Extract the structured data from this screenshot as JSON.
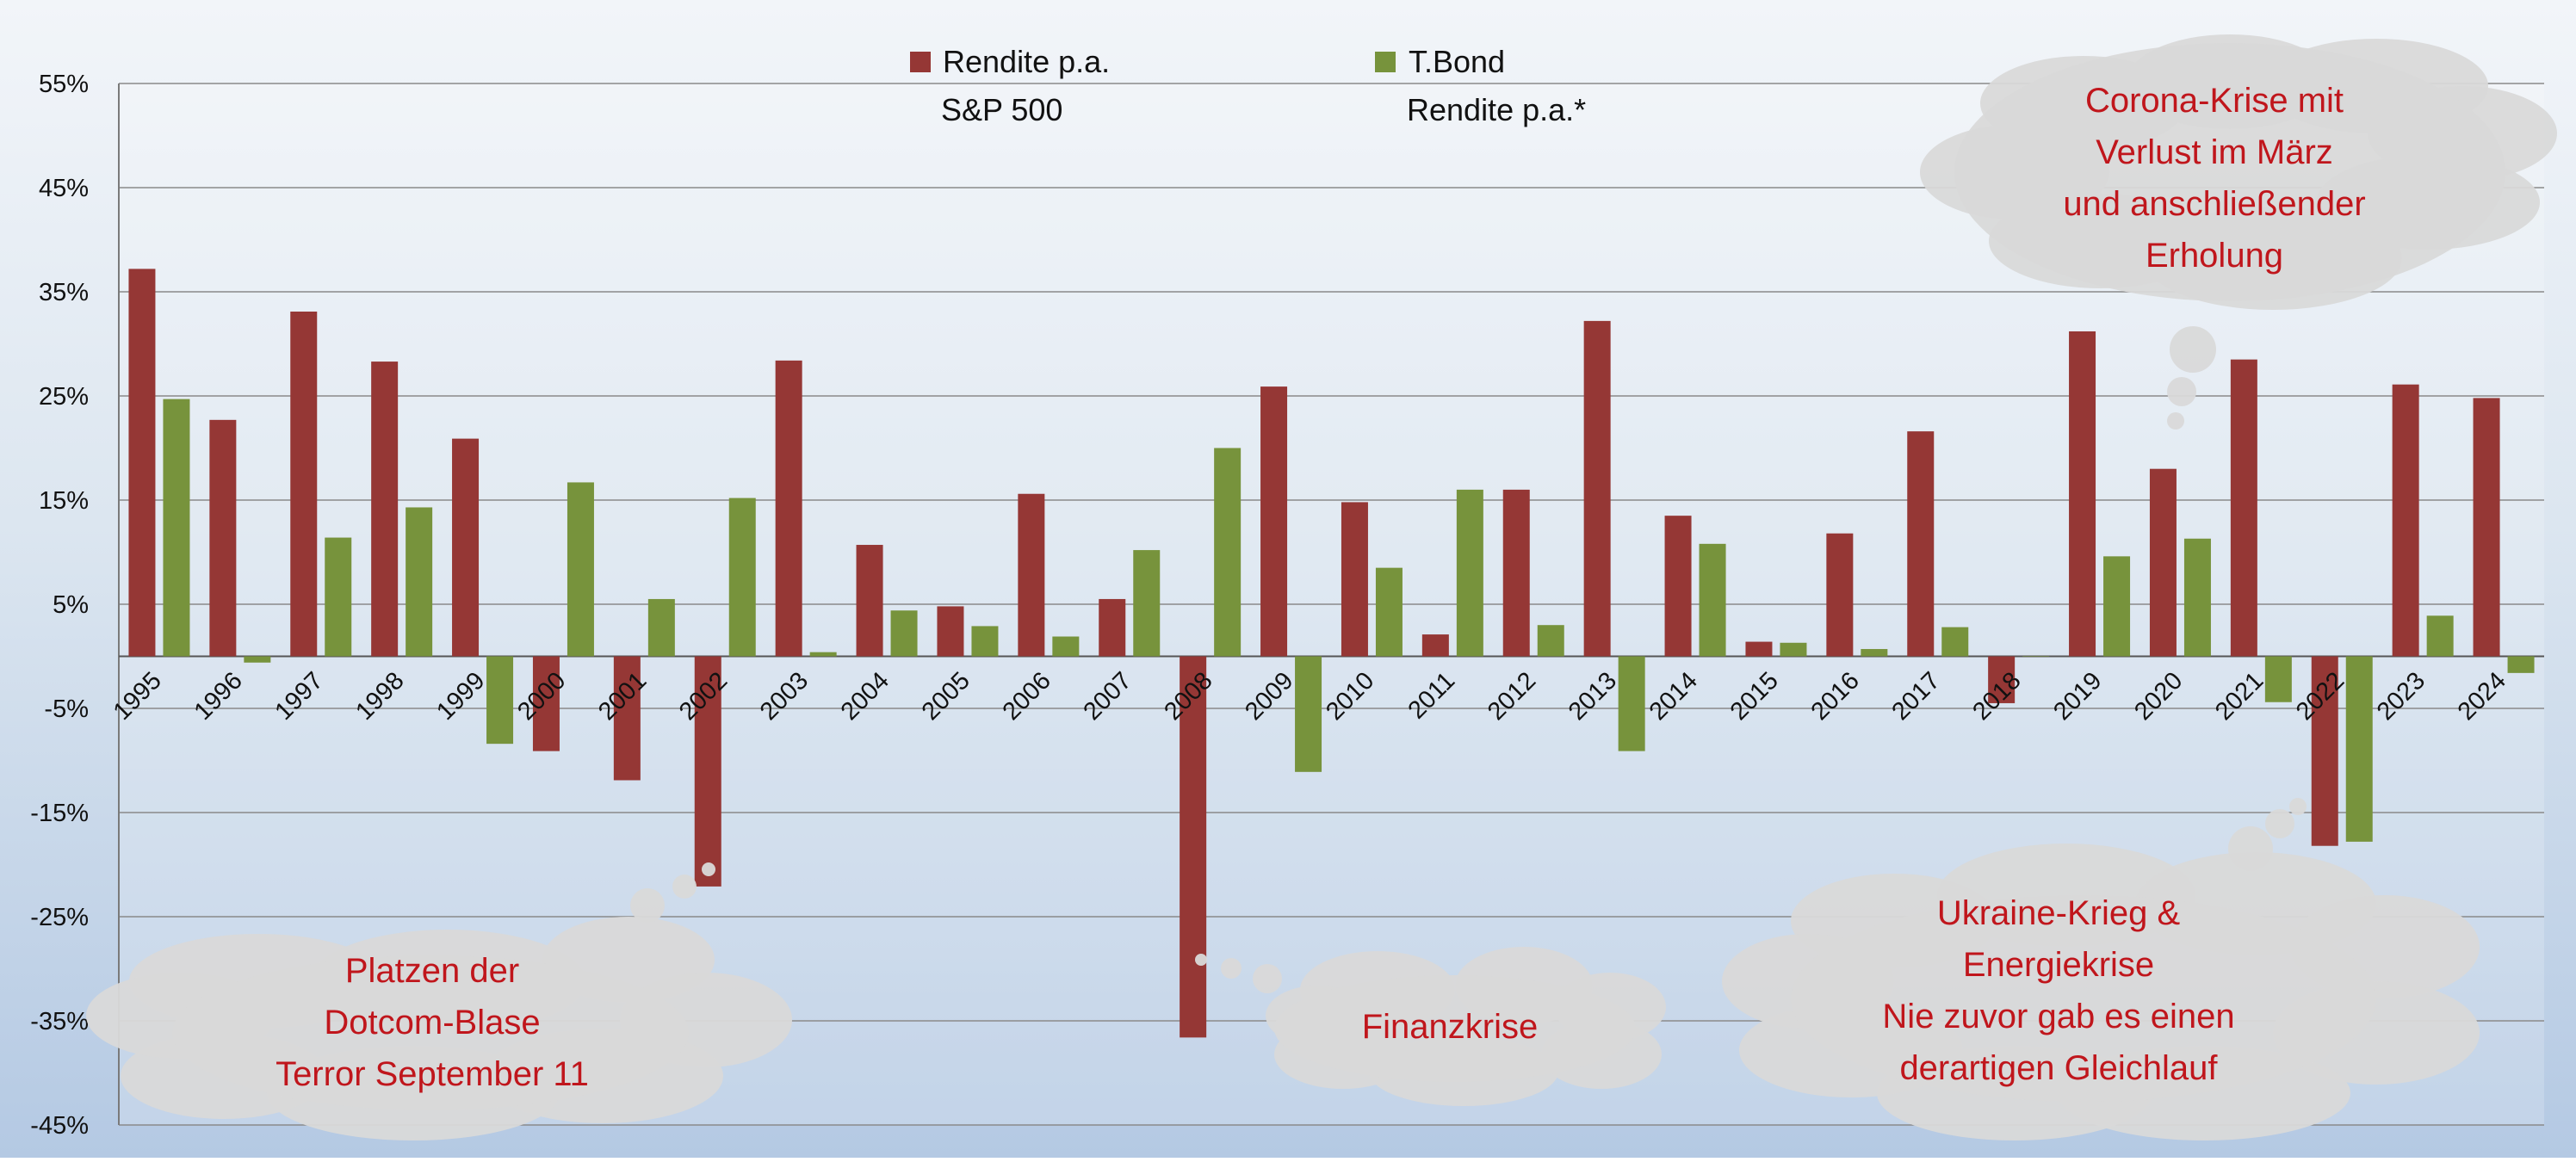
{
  "chart_data": {
    "type": "bar",
    "categories": [
      "1995",
      "1996",
      "1997",
      "1998",
      "1999",
      "2000",
      "2001",
      "2002",
      "2003",
      "2004",
      "2005",
      "2006",
      "2007",
      "2008",
      "2009",
      "2010",
      "2011",
      "2012",
      "2013",
      "2014",
      "2015",
      "2016",
      "2017",
      "2018",
      "2019",
      "2020",
      "2021",
      "2022",
      "2023",
      "2024"
    ],
    "series": [
      {
        "name": "Rendite p.a. S&P 500",
        "legend_lines": [
          "Rendite p.a.",
          "S&P 500"
        ],
        "color": "#953735",
        "values": [
          37.2,
          22.7,
          33.1,
          28.3,
          20.9,
          -9.1,
          -11.9,
          -22.1,
          28.4,
          10.7,
          4.8,
          15.6,
          5.5,
          -36.6,
          25.9,
          14.8,
          2.1,
          16.0,
          32.2,
          13.5,
          1.4,
          11.8,
          21.6,
          -4.5,
          31.2,
          18.0,
          28.5,
          -18.2,
          26.1,
          24.8
        ]
      },
      {
        "name": "T.Bond Rendite p.a.*",
        "legend_lines": [
          "T.Bond",
          "Rendite p.a.*"
        ],
        "color": "#77933c",
        "values": [
          24.7,
          -0.6,
          11.4,
          14.3,
          -8.4,
          16.7,
          5.5,
          15.2,
          0.4,
          4.4,
          2.9,
          1.9,
          10.2,
          20.0,
          -11.1,
          8.5,
          16.0,
          3.0,
          -9.1,
          10.8,
          1.3,
          0.7,
          2.8,
          0.0,
          9.6,
          11.3,
          -4.4,
          -17.8,
          3.9,
          -1.6
        ]
      }
    ],
    "yticks": [
      "55%",
      "45%",
      "35%",
      "25%",
      "15%",
      "5%",
      "-5%",
      "-15%",
      "-25%",
      "-35%",
      "-45%"
    ],
    "ylim": [
      -45,
      55
    ],
    "grid": true,
    "legend_position": "top-center",
    "annotations": [
      {
        "lines": [
          "Platzen der",
          "Dotcom-Blase",
          "Terror September 11"
        ],
        "near": "2002"
      },
      {
        "lines": [
          "Finanzkrise"
        ],
        "near": "2008"
      },
      {
        "lines": [
          "Corona-Krise mit",
          "Verlust im März",
          "und anschließender",
          "Erholung"
        ],
        "near": "2020"
      },
      {
        "lines": [
          "Ukraine-Krieg &",
          "Energiekrise",
          "Nie zuvor gab es einen",
          "derartigen Gleichlauf"
        ],
        "near": "2022"
      }
    ]
  }
}
